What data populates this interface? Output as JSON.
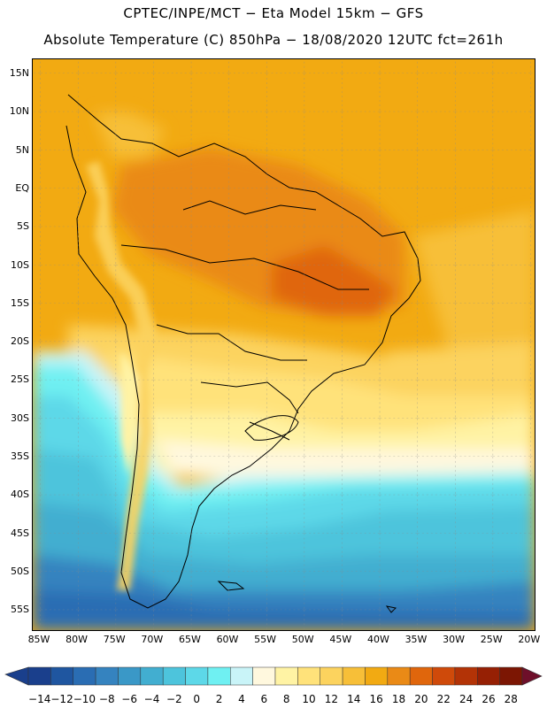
{
  "title": {
    "line1": "CPTEC/INPE/MCT −  Eta Model 15km − GFS",
    "line2": "Absolute Temperature (C) 850hPa − 18/08/2020 12UTC fct=261h"
  },
  "axes": {
    "lat_labels": [
      "15N",
      "10N",
      "5N",
      "EQ",
      "5S",
      "10S",
      "15S",
      "20S",
      "25S",
      "30S",
      "35S",
      "40S",
      "45S",
      "50S",
      "55S"
    ],
    "lon_labels": [
      "85W",
      "80W",
      "75W",
      "70W",
      "65W",
      "60W",
      "55W",
      "50W",
      "45W",
      "40W",
      "35W",
      "30W",
      "25W",
      "20W"
    ]
  },
  "colorbar": {
    "labels": [
      "-14",
      "-12",
      "-10",
      "-8",
      "-6",
      "-4",
      "-2",
      "0",
      "2",
      "4",
      "6",
      "8",
      "10",
      "12",
      "14",
      "16",
      "18",
      "20",
      "22",
      "24",
      "26",
      "28"
    ],
    "colors": [
      "#1a3f8c",
      "#1f56a0",
      "#2a6db3",
      "#3583bf",
      "#3a98c7",
      "#42aed0",
      "#4dc4dc",
      "#5dd8e8",
      "#6ff0f2",
      "#c9f4f8",
      "#fff8de",
      "#fff3a4",
      "#ffe27a",
      "#fcd35e",
      "#f7bf38",
      "#f2aa12",
      "#ea8a16",
      "#e0660c",
      "#cf4a0a",
      "#b33306",
      "#962004",
      "#7c1603"
    ]
  }
}
